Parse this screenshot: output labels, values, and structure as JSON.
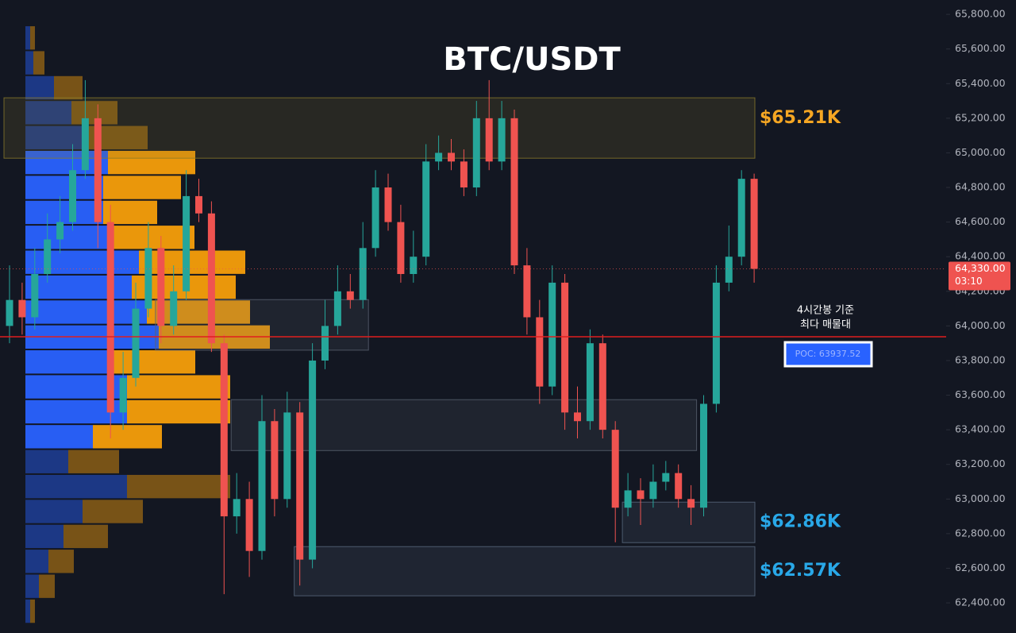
{
  "chart_data": {
    "type": "candlestick",
    "title": "BTC/USDT",
    "ylim": [
      62226,
      65883
    ],
    "yticks": [
      {
        "value": 62400,
        "label": "62,400.00"
      },
      {
        "value": 62600,
        "label": "62,600.00"
      },
      {
        "value": 62800,
        "label": "62,800.00"
      },
      {
        "value": 63000,
        "label": "63,000.00"
      },
      {
        "value": 63200,
        "label": "63,200.00"
      },
      {
        "value": 63400,
        "label": "63,400.00"
      },
      {
        "value": 63600,
        "label": "63,600.00"
      },
      {
        "value": 63800,
        "label": "63,800.00"
      },
      {
        "value": 64000,
        "label": "64,000.00"
      },
      {
        "value": 64200,
        "label": "64,200.00"
      },
      {
        "value": 64400,
        "label": "64,400.00"
      },
      {
        "value": 64600,
        "label": "64,600.00"
      },
      {
        "value": 64800,
        "label": "64,800.00"
      },
      {
        "value": 65000,
        "label": "65,000.00"
      },
      {
        "value": 65200,
        "label": "65,200.00"
      },
      {
        "value": 65400,
        "label": "65,400.00"
      },
      {
        "value": 65600,
        "label": "65,600.00"
      },
      {
        "value": 65800,
        "label": "65,800.00"
      }
    ],
    "up_color": "#26a69a",
    "down_color": "#ef5350",
    "open": [
      64000,
      64150,
      64050,
      64300,
      64500,
      64600,
      64900,
      65200,
      64600,
      63500,
      63700,
      64100,
      64450,
      64000,
      64200,
      64750,
      64650,
      63900,
      62900,
      63000,
      62700,
      63450,
      63000,
      63500,
      62650,
      63800,
      64000,
      64200,
      64150,
      64450,
      64800,
      64600,
      64300,
      64400,
      64950,
      65000,
      64950,
      64800,
      65200,
      64950,
      65200,
      64350,
      64050,
      63650,
      64250,
      63500,
      63450,
      63900,
      63400,
      62950,
      63050,
      63000,
      63100,
      63150,
      63000,
      62950,
      63550,
      64250,
      64400,
      64850
    ],
    "high": [
      64350,
      64250,
      64450,
      64650,
      64750,
      65050,
      65420,
      65280,
      64700,
      63850,
      64250,
      64600,
      64520,
      64350,
      64900,
      64850,
      64720,
      63950,
      63150,
      63100,
      63600,
      63520,
      63620,
      63560,
      63900,
      64150,
      64350,
      64300,
      64600,
      64900,
      64880,
      64700,
      64550,
      65050,
      65100,
      65080,
      65020,
      65300,
      65420,
      65300,
      65250,
      64450,
      64150,
      64350,
      64300,
      63650,
      63980,
      63950,
      63450,
      63150,
      63120,
      63200,
      63220,
      63200,
      63080,
      63600,
      64350,
      64580,
      64900,
      64880
    ],
    "low": [
      63900,
      63950,
      63980,
      64250,
      64420,
      64550,
      64850,
      64450,
      63350,
      63400,
      63650,
      64050,
      63900,
      63950,
      64150,
      64600,
      63850,
      62450,
      62800,
      62550,
      62650,
      62900,
      62950,
      62500,
      62600,
      63750,
      63950,
      64100,
      64100,
      64400,
      64550,
      64250,
      64250,
      64350,
      64900,
      64900,
      64750,
      64750,
      64900,
      64900,
      64300,
      63950,
      63550,
      63600,
      63400,
      63350,
      63400,
      63350,
      62750,
      62900,
      62850,
      62950,
      63050,
      62950,
      62850,
      62900,
      63500,
      64200,
      64350,
      64250
    ],
    "close": [
      64150,
      64050,
      64300,
      64500,
      64600,
      64900,
      65200,
      64600,
      63500,
      63700,
      64100,
      64450,
      64000,
      64200,
      64750,
      64650,
      63900,
      62900,
      63000,
      62700,
      63450,
      63000,
      63500,
      62650,
      63800,
      64000,
      64200,
      64150,
      64450,
      64800,
      64600,
      64300,
      64400,
      64950,
      65000,
      64950,
      64800,
      65200,
      64950,
      65200,
      64350,
      64050,
      63650,
      64250,
      63500,
      63450,
      63900,
      63400,
      62950,
      63050,
      63000,
      63100,
      63150,
      63000,
      62950,
      63550,
      64250,
      64400,
      64850,
      64330
    ],
    "volume_profile": {
      "bins": [
        62280,
        62424,
        62568,
        62712,
        62856,
        63000,
        63144,
        63288,
        63432,
        63576,
        63720,
        63864,
        64008,
        64152,
        64296,
        64440,
        64584,
        64728,
        64872,
        65016,
        65160,
        65304,
        65448,
        65592,
        65736
      ],
      "buy": [
        6,
        17,
        29,
        48,
        72,
        128,
        54,
        85,
        128,
        128,
        110,
        168,
        153,
        134,
        143,
        110,
        98,
        98,
        104,
        73,
        58,
        36,
        10,
        6
      ],
      "sell": [
        6,
        20,
        32,
        56,
        76,
        130,
        64,
        87,
        130,
        130,
        104,
        140,
        130,
        131,
        134,
        103,
        68,
        98,
        110,
        81,
        58,
        36,
        14,
        6
      ],
      "buy_color": "#2962ff",
      "sell_color": "#f59e0b",
      "value_area": [
        63288,
        65016
      ]
    },
    "zones": [
      {
        "low": 64969,
        "high": 65318,
        "from": 0,
        "to": 59,
        "color": "#8a7a2a",
        "label": "$65.21K",
        "label_color": "#f5a623"
      },
      {
        "low": 63860,
        "high": 64152,
        "from": 12,
        "to": 28,
        "color": "#5a6270"
      },
      {
        "low": 63280,
        "high": 63574,
        "from": 18,
        "to": 54,
        "color": "#5a6270"
      },
      {
        "low": 62748,
        "high": 62982,
        "from": 49,
        "to": 59,
        "color": "#5a6a80",
        "label": "$62.86K",
        "label_color": "#29a8e8"
      },
      {
        "low": 62441,
        "high": 62725,
        "from": 23,
        "to": 59,
        "color": "#5a6a80",
        "label": "$62.57K",
        "label_color": "#29a8e8"
      }
    ],
    "poc": {
      "value": 63937.52,
      "label": "POC: 63937.52",
      "color": "#e01e1e"
    },
    "annotation": [
      "4시간봉 기준",
      "최다 매물대"
    ],
    "last_price": {
      "value": 64330,
      "label": "64,330.00",
      "countdown": "03:10"
    }
  }
}
